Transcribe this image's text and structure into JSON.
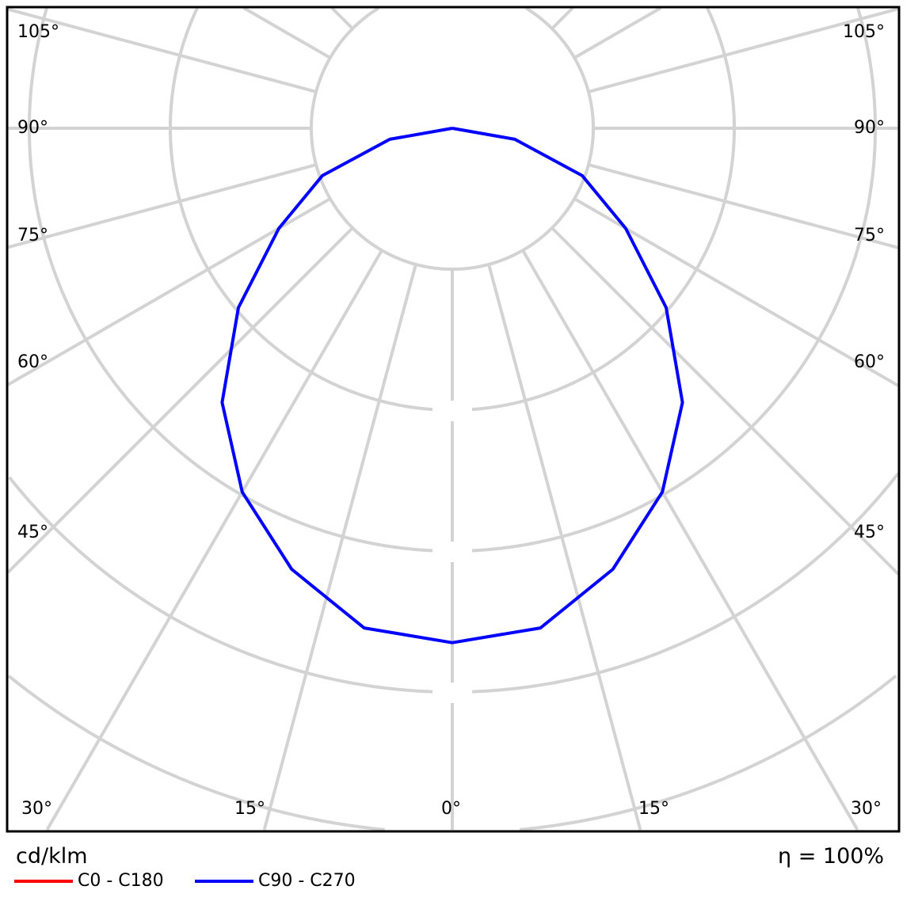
{
  "chart_data": {
    "type": "polar-line",
    "unit_label": "cd/klm",
    "efficiency_label": "η = 100%",
    "angle_tick_labels": {
      "left": [
        "105°",
        "90°",
        "75°",
        "60°",
        "45°"
      ],
      "right": [
        "105°",
        "90°",
        "75°",
        "60°",
        "45°"
      ],
      "bottom": [
        "30°",
        "15°",
        "0°",
        "15°",
        "30°"
      ]
    },
    "grid": true,
    "angle_step_deg": 15,
    "ring_count": 6,
    "series": [
      {
        "name": "C0 - C180",
        "color": "#ff0000",
        "angles": [
          0,
          10,
          20,
          30,
          40,
          50,
          60,
          70,
          80,
          90
        ],
        "values_in_ring_units": [
          3.65,
          3.6,
          3.33,
          2.98,
          2.54,
          1.98,
          1.42,
          0.98,
          0.45,
          0
        ]
      },
      {
        "name": "C90 - C270",
        "color": "#0000ff",
        "angles": [
          0,
          10,
          20,
          30,
          40,
          50,
          60,
          70,
          80,
          90
        ],
        "values_in_ring_units": [
          3.65,
          3.6,
          3.33,
          2.98,
          2.54,
          1.98,
          1.42,
          0.98,
          0.45,
          0
        ]
      }
    ]
  }
}
